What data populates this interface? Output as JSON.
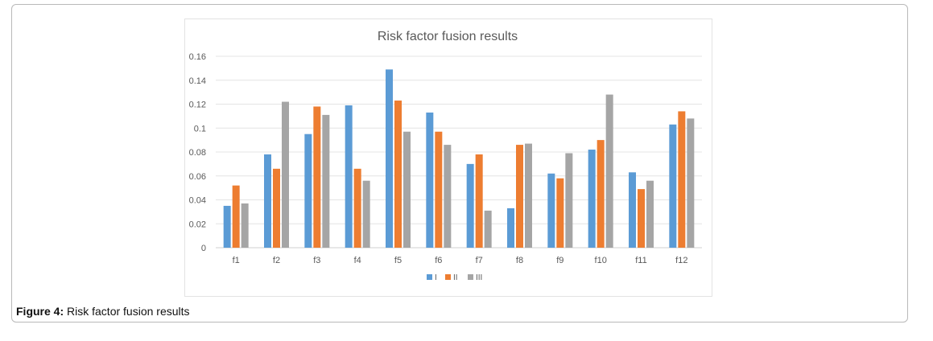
{
  "figure": {
    "label": "Figure 4:",
    "caption": "Risk factor fusion results"
  },
  "chart_data": {
    "type": "bar",
    "title": "Risk factor fusion results",
    "xlabel": "",
    "ylabel": "",
    "ylim": [
      0,
      0.16
    ],
    "yticks": [
      "0",
      "0.02",
      "0.04",
      "0.06",
      "0.08",
      "0.1",
      "0.12",
      "0.14",
      "0.16"
    ],
    "grid": true,
    "legend_position": "bottom",
    "categories": [
      "f1",
      "f2",
      "f3",
      "f4",
      "f5",
      "f6",
      "f7",
      "f8",
      "f9",
      "f10",
      "f11",
      "f12"
    ],
    "series": [
      {
        "name": "I",
        "color": "#5b9bd5",
        "values": [
          0.035,
          0.078,
          0.095,
          0.119,
          0.149,
          0.113,
          0.07,
          0.033,
          0.062,
          0.082,
          0.063,
          0.103
        ]
      },
      {
        "name": "II",
        "color": "#ed7d31",
        "values": [
          0.052,
          0.066,
          0.118,
          0.066,
          0.123,
          0.097,
          0.078,
          0.086,
          0.058,
          0.09,
          0.049,
          0.114
        ]
      },
      {
        "name": "III",
        "color": "#a5a5a5",
        "values": [
          0.037,
          0.122,
          0.111,
          0.056,
          0.097,
          0.086,
          0.031,
          0.087,
          0.079,
          0.128,
          0.056,
          0.108
        ]
      }
    ]
  }
}
